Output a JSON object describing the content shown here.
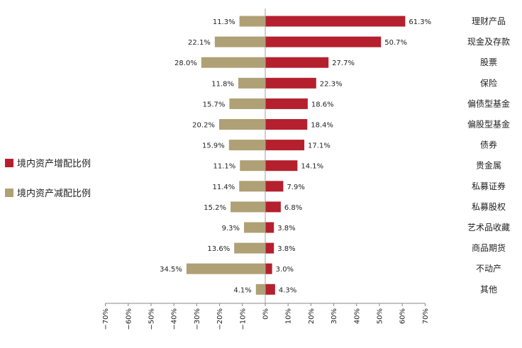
{
  "chart_data": {
    "type": "bar",
    "orientation": "horizontal",
    "title": "",
    "xlabel": "",
    "ylabel": "",
    "xlim": [
      -70,
      70
    ],
    "x_ticks": [
      "−70%",
      "−60%",
      "−50%",
      "−40%",
      "−30%",
      "−20%",
      "−10%",
      "0%",
      "10%",
      "20%",
      "30%",
      "40%",
      "50%",
      "60%",
      "70%"
    ],
    "x_tick_values": [
      -70,
      -60,
      -50,
      -40,
      -30,
      -20,
      -10,
      0,
      10,
      20,
      30,
      40,
      50,
      60,
      70
    ],
    "grid": false,
    "legend_position": "left",
    "categories": [
      "理财产品",
      "现金及存款",
      "股票",
      "保险",
      "偏债型基金",
      "偏股型基金",
      "债券",
      "贵金属",
      "私募证券",
      "私募股权",
      "艺术品收藏",
      "商品期货",
      "不动产",
      "其他"
    ],
    "series": [
      {
        "name": "境内资产增配比例",
        "color": "#b5202e",
        "values": [
          61.3,
          50.7,
          27.7,
          22.3,
          18.6,
          18.4,
          17.1,
          14.1,
          7.9,
          6.8,
          3.8,
          3.8,
          3.0,
          4.3
        ],
        "labels": [
          "61.3%",
          "50.7%",
          "27.7%",
          "22.3%",
          "18.6%",
          "18.4%",
          "17.1%",
          "14.1%",
          "7.9%",
          "6.8%",
          "3.8%",
          "3.8%",
          "3.0%",
          "4.3%"
        ]
      },
      {
        "name": "境内资产减配比例",
        "color": "#afa075",
        "values": [
          11.3,
          22.1,
          28.0,
          11.8,
          15.7,
          20.2,
          15.9,
          11.1,
          11.4,
          15.2,
          9.3,
          13.6,
          34.5,
          4.1
        ],
        "labels": [
          "11.3%",
          "22.1%",
          "28.0%",
          "11.8%",
          "15.7%",
          "20.2%",
          "15.9%",
          "11.1%",
          "11.4%",
          "15.2%",
          "9.3%",
          "13.6%",
          "34.5%",
          "4.1%"
        ]
      }
    ]
  }
}
